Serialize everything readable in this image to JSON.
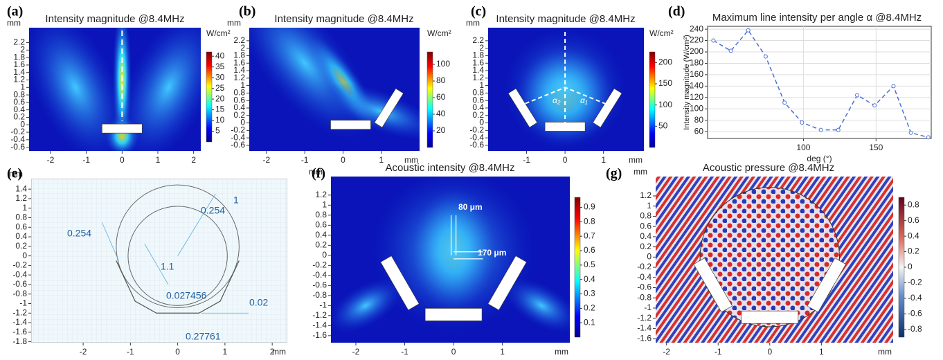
{
  "chart_data": [
    {
      "type": "heatmap",
      "label": "(a)",
      "title": "Intensity magnitude @8.4MHz",
      "unit": "W/cm²",
      "y_unit": "mm",
      "colormap": "jet",
      "xlim": [
        -2.6,
        2.2
      ],
      "ylim": [
        -0.7,
        2.6
      ],
      "xticks": [
        -2,
        -1,
        0,
        1,
        2
      ],
      "yticks": [
        -0.6,
        -0.4,
        -0.2,
        0,
        0.2,
        0.4,
        0.6,
        0.8,
        1,
        1.2,
        1.4,
        1.6,
        1.8,
        2,
        2.2
      ],
      "clim": [
        0,
        42
      ],
      "cticks": [
        5,
        10,
        15,
        20,
        25,
        30,
        35,
        40
      ]
    },
    {
      "type": "heatmap",
      "label": "(b)",
      "title": "Intensity magnitude @8.4MHz",
      "unit": "W/cm²",
      "y_unit": "mm",
      "x_unit": "mm",
      "colormap": "jet",
      "xlim": [
        -2.45,
        2.0
      ],
      "ylim": [
        -0.75,
        2.55
      ],
      "xticks": [
        -2,
        -1,
        0,
        1
      ],
      "yticks": [
        -0.6,
        -0.4,
        -0.2,
        0,
        0.2,
        0.4,
        0.6,
        0.8,
        1,
        1.2,
        1.4,
        1.6,
        1.8,
        2,
        2.2
      ],
      "clim": [
        0,
        115
      ],
      "cticks": [
        20,
        40,
        60,
        80,
        100
      ]
    },
    {
      "type": "heatmap",
      "label": "(c)",
      "title": "Intensity magnitude @8.4MHz",
      "unit": "W/cm²",
      "y_unit": "mm",
      "x_unit": "mm",
      "colormap": "jet",
      "xlim": [
        -2.0,
        2.05
      ],
      "ylim": [
        -0.75,
        2.55
      ],
      "xticks": [
        -1,
        0,
        1
      ],
      "yticks": [
        -0.6,
        -0.4,
        -0.2,
        0,
        0.2,
        0.4,
        0.6,
        0.8,
        1,
        1.2,
        1.4,
        1.6,
        1.8,
        2,
        2.2
      ],
      "clim": [
        0,
        225
      ],
      "cticks": [
        50,
        100,
        150,
        200
      ],
      "annotations": [
        "α₂",
        "α₁"
      ]
    },
    {
      "type": "line",
      "label": "(d)",
      "title": "Maximum line intensity per angle α @8.4MHz",
      "x_label": "deg (°)",
      "y_label": "Intensity magnitude (W/cm²)",
      "x": [
        38,
        50,
        62,
        74,
        87,
        99,
        112,
        124,
        137,
        149,
        162,
        174,
        186
      ],
      "series": [
        {
          "color": "#4a6fd8",
          "values": [
            220,
            202,
            238,
            192,
            111,
            76,
            63,
            63,
            124,
            106,
            140,
            58,
            50
          ]
        }
      ],
      "xlim": [
        34,
        188
      ],
      "ylim": [
        48,
        245
      ],
      "xticks": [
        100,
        150
      ],
      "yticks": [
        60,
        80,
        100,
        120,
        140,
        160,
        180,
        200,
        220,
        240
      ],
      "grid": true
    },
    {
      "type": "geometry",
      "label": "(e)",
      "y_unit": "mm",
      "x_unit": "mm",
      "xlim": [
        -3.1,
        2.32
      ],
      "ylim": [
        -1.82,
        1.62
      ],
      "xticks": [
        -2,
        -1,
        0,
        1,
        2
      ],
      "yticks": [
        1.4,
        1.2,
        1,
        0.8,
        0.6,
        0.4,
        0.2,
        0,
        -0.2,
        -0.4,
        -0.6,
        -0.8,
        -1,
        -1.2,
        -1.4,
        -1.6,
        -1.8
      ],
      "annotations": [
        0.254,
        1,
        0.254,
        1.1,
        0.027456,
        0.02,
        0.27761
      ]
    },
    {
      "type": "heatmap",
      "label": "(f)",
      "title": "Acoustic intensity @8.4MHz",
      "y_unit": "mm",
      "x_unit": "mm",
      "colormap": "jet",
      "xlim": [
        -2.51,
        2.38
      ],
      "ylim": [
        -1.74,
        1.57
      ],
      "xticks": [
        -2,
        -1,
        0,
        1
      ],
      "yticks": [
        1.2,
        1,
        0.8,
        0.6,
        0.4,
        0.2,
        0,
        -0.2,
        -0.4,
        -0.6,
        -0.8,
        -1,
        -1.2,
        -1.4,
        -1.6
      ],
      "clim": [
        0,
        0.97
      ],
      "cticks": [
        0.1,
        0.2,
        0.3,
        0.4,
        0.5,
        0.6,
        0.7,
        0.8,
        0.9
      ],
      "annotations": [
        "80 μm",
        "170 μm"
      ]
    },
    {
      "type": "heatmap",
      "label": "(g)",
      "title": "Acoustic pressure @8.4MHz",
      "y_unit": "mm",
      "x_unit": "mm",
      "colormap": "rwb",
      "xlim": [
        -2.21,
        2.39
      ],
      "ylim": [
        -1.68,
        1.58
      ],
      "xticks": [
        -2,
        -1,
        0,
        1
      ],
      "yticks": [
        1.2,
        1,
        0.8,
        0.6,
        0.4,
        0.2,
        0,
        -0.2,
        -0.4,
        -0.6,
        -0.8,
        -1,
        -1.2,
        -1.4,
        -1.6
      ],
      "clim": [
        -0.9,
        0.9
      ],
      "cticks": [
        -0.8,
        -0.6,
        -0.4,
        -0.2,
        0,
        0.2,
        0.4,
        0.6,
        0.8
      ]
    }
  ]
}
